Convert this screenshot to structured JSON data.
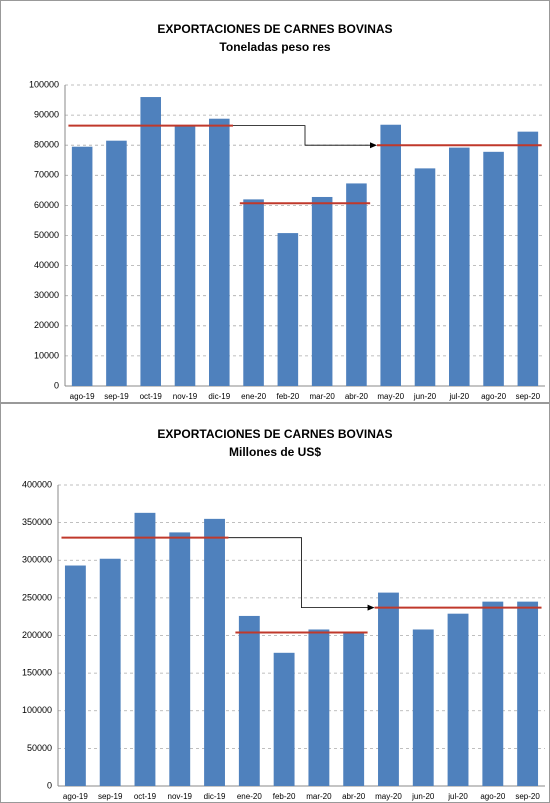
{
  "chart_data": [
    {
      "type": "bar",
      "title": "EXPORTACIONES DE CARNES BOVINAS",
      "subtitle": "Toneladas peso res",
      "categories": [
        "ago-19",
        "sep-19",
        "oct-19",
        "nov-19",
        "dic-19",
        "ene-20",
        "feb-20",
        "mar-20",
        "abr-20",
        "may-20",
        "jun-20",
        "jul-20",
        "ago-20",
        "sep-20"
      ],
      "values": [
        79500,
        81500,
        96000,
        86500,
        88800,
        62000,
        50800,
        62800,
        67300,
        86800,
        72300,
        79200,
        77800,
        84500
      ],
      "color": "#4f81bd",
      "ylim": [
        0,
        100000
      ],
      "yticks": [
        0,
        10000,
        20000,
        30000,
        40000,
        50000,
        60000,
        70000,
        80000,
        90000,
        100000
      ],
      "grid": true,
      "reference_lines": [
        {
          "start": "ago-19",
          "end": "dic-19",
          "value": 86500,
          "color": "#c0392b"
        },
        {
          "start": "ene-20",
          "end": "abr-20",
          "value": 60700,
          "color": "#c0392b"
        },
        {
          "start": "may-20",
          "end": "sep-20",
          "value": 80000,
          "color": "#c0392b"
        }
      ]
    },
    {
      "type": "bar",
      "title": "EXPORTACIONES DE CARNES BOVINAS",
      "subtitle": "Millones de US$",
      "categories": [
        "ago-19",
        "sep-19",
        "oct-19",
        "nov-19",
        "dic-19",
        "ene-20",
        "feb-20",
        "mar-20",
        "abr-20",
        "may-20",
        "jun-20",
        "jul-20",
        "ago-20",
        "sep-20"
      ],
      "values": [
        293000,
        302000,
        363000,
        337000,
        355000,
        226000,
        177000,
        208000,
        205000,
        257000,
        208000,
        229000,
        245000,
        245000
      ],
      "color": "#4f81bd",
      "ylim": [
        0,
        400000
      ],
      "yticks": [
        0,
        50000,
        100000,
        150000,
        200000,
        250000,
        300000,
        350000,
        400000
      ],
      "grid": true,
      "reference_lines": [
        {
          "start": "ago-19",
          "end": "dic-19",
          "value": 330000,
          "color": "#c0392b"
        },
        {
          "start": "ene-20",
          "end": "abr-20",
          "value": 204000,
          "color": "#c0392b"
        },
        {
          "start": "may-20",
          "end": "sep-20",
          "value": 237000,
          "color": "#c0392b"
        }
      ]
    }
  ]
}
